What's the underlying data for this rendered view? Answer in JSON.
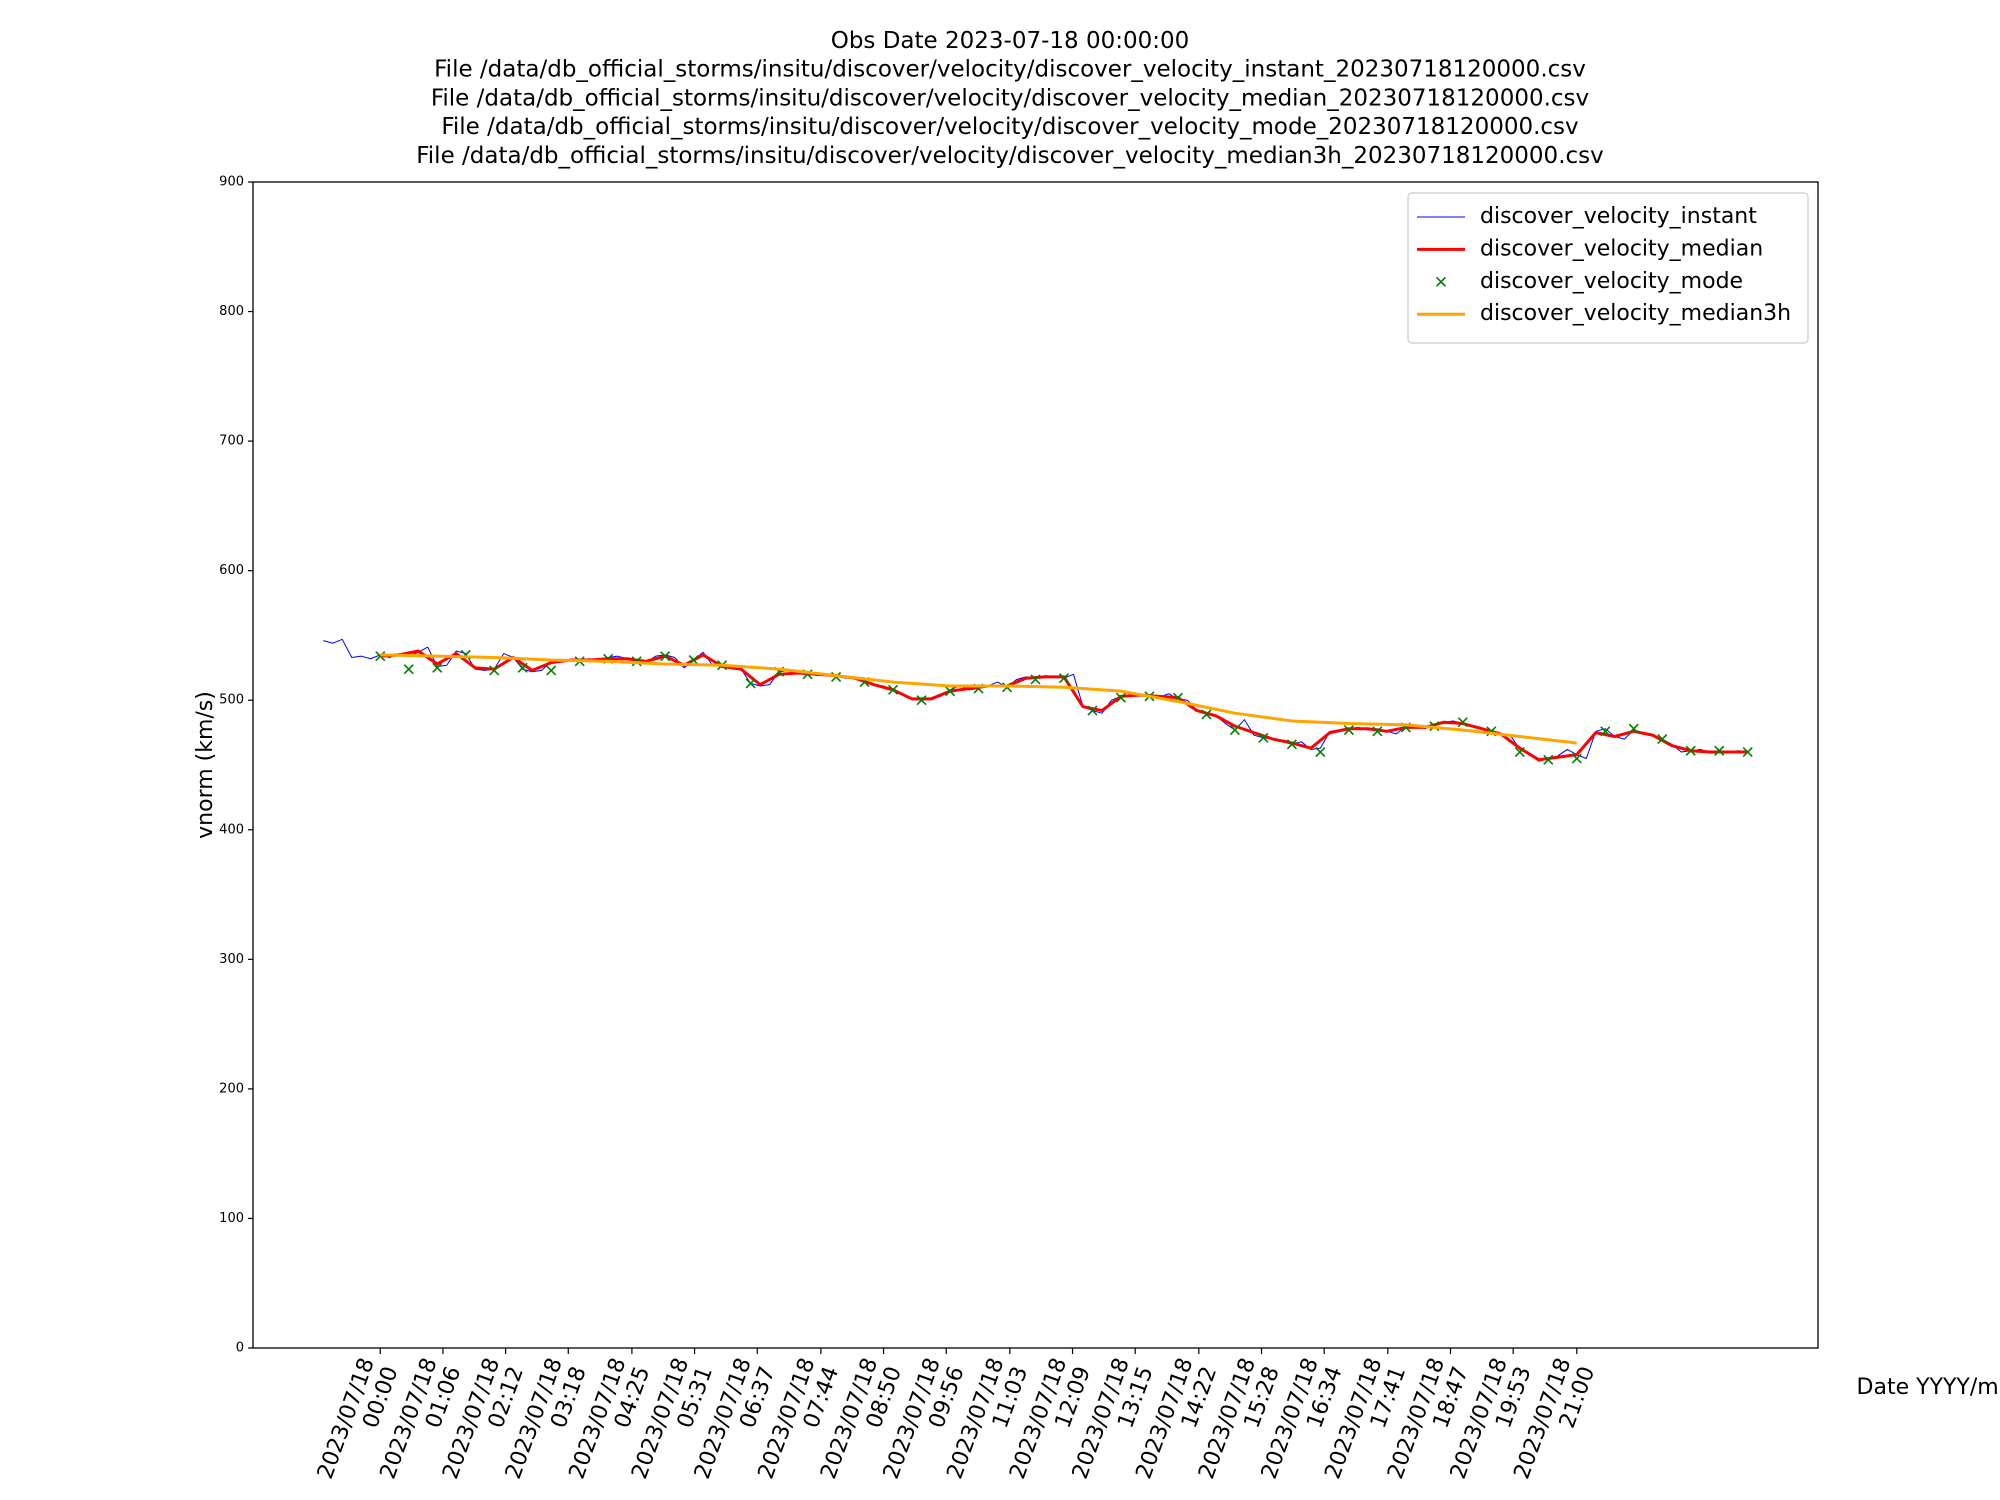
{
  "chart_data": {
    "type": "line",
    "title": [
      "Obs Date 2023-07-18 00:00:00",
      "File /data/db_official_storms/insitu/discover/velocity/discover_velocity_instant_20230718120000.csv",
      "File /data/db_official_storms/insitu/discover/velocity/discover_velocity_median_20230718120000.csv",
      "File /data/db_official_storms/insitu/discover/velocity/discover_velocity_mode_20230718120000.csv",
      "File /data/db_official_storms/insitu/discover/velocity/discover_velocity_median3h_20230718120000.csv"
    ],
    "x_label": "Date YYYY/mm/dd",
    "y_label": "vnorm (km/s)",
    "xlim": [
      -134,
      1514
    ],
    "ylim": [
      0,
      900
    ],
    "yticks": [
      0,
      100,
      200,
      300,
      400,
      500,
      600,
      700,
      800,
      900
    ],
    "xticks": [
      {
        "value": 0,
        "label": "2023/07/18\n00:00"
      },
      {
        "value": 66,
        "label": "2023/07/18\n01:06"
      },
      {
        "value": 132,
        "label": "2023/07/18\n02:12"
      },
      {
        "value": 198,
        "label": "2023/07/18\n03:18"
      },
      {
        "value": 265,
        "label": "2023/07/18\n04:25"
      },
      {
        "value": 331,
        "label": "2023/07/18\n05:31"
      },
      {
        "value": 397,
        "label": "2023/07/18\n06:37"
      },
      {
        "value": 464,
        "label": "2023/07/18\n07:44"
      },
      {
        "value": 530,
        "label": "2023/07/18\n08:50"
      },
      {
        "value": 596,
        "label": "2023/07/18\n09:56"
      },
      {
        "value": 663,
        "label": "2023/07/18\n11:03"
      },
      {
        "value": 729,
        "label": "2023/07/18\n12:09"
      },
      {
        "value": 795,
        "label": "2023/07/18\n13:15"
      },
      {
        "value": 862,
        "label": "2023/07/18\n14:22"
      },
      {
        "value": 928,
        "label": "2023/07/18\n15:28"
      },
      {
        "value": 994,
        "label": "2023/07/18\n16:34"
      },
      {
        "value": 1061,
        "label": "2023/07/18\n17:41"
      },
      {
        "value": 1127,
        "label": "2023/07/18\n18:47"
      },
      {
        "value": 1193,
        "label": "2023/07/18\n19:53"
      },
      {
        "value": 1260,
        "label": "2023/07/18\n21:00"
      }
    ],
    "legend": "upper right",
    "series": [
      {
        "name": "discover_velocity_instant",
        "color": "#0000ff",
        "style": "line",
        "width": 1,
        "x": [
          -60,
          -50,
          -40,
          -30,
          -20,
          -10,
          0,
          10,
          20,
          30,
          40,
          50,
          60,
          70,
          80,
          90,
          100,
          110,
          120,
          130,
          140,
          150,
          160,
          170,
          180,
          190,
          200,
          210,
          220,
          230,
          240,
          250,
          260,
          270,
          280,
          290,
          300,
          310,
          320,
          330,
          340,
          350,
          360,
          370,
          380,
          390,
          400,
          410,
          420,
          430,
          440,
          450,
          460,
          470,
          480,
          490,
          500,
          510,
          520,
          530,
          540,
          550,
          560,
          570,
          580,
          590,
          600,
          610,
          620,
          630,
          640,
          650,
          660,
          670,
          680,
          690,
          700,
          710,
          720,
          730,
          740,
          750,
          760,
          770,
          780,
          790,
          800,
          810,
          820,
          830,
          840,
          850,
          860,
          870,
          880,
          890,
          900,
          910,
          920,
          930,
          940,
          950,
          960,
          970,
          980,
          990,
          1000,
          1010,
          1020,
          1030,
          1040,
          1050,
          1060,
          1070,
          1080,
          1090,
          1100,
          1110,
          1120,
          1130,
          1140,
          1150,
          1160,
          1170,
          1180,
          1190,
          1200,
          1210,
          1220,
          1230,
          1240,
          1250,
          1260,
          1270,
          1280,
          1290,
          1300,
          1310,
          1320,
          1330,
          1340,
          1350,
          1360,
          1370,
          1380,
          1390,
          1400,
          1410,
          1420,
          1430,
          1440
        ],
        "values": [
          546,
          544,
          547,
          533,
          534,
          532,
          535,
          533,
          536,
          534,
          537,
          541,
          526,
          527,
          538,
          536,
          524,
          523,
          524,
          536,
          533,
          524,
          522,
          523,
          530,
          531,
          531,
          530,
          532,
          531,
          533,
          534,
          532,
          531,
          529,
          534,
          535,
          533,
          525,
          531,
          537,
          527,
          526,
          525,
          524,
          513,
          511,
          512,
          522,
          523,
          521,
          521,
          519,
          520,
          519,
          517,
          518,
          514,
          512,
          511,
          508,
          505,
          501,
          500,
          501,
          503,
          508,
          511,
          508,
          509,
          511,
          514,
          510,
          516,
          518,
          517,
          519,
          518,
          517,
          520,
          495,
          492,
          490,
          500,
          503,
          504,
          505,
          503,
          502,
          505,
          501,
          500,
          492,
          489,
          488,
          482,
          477,
          485,
          473,
          471,
          470,
          468,
          466,
          468,
          462,
          463,
          476,
          477,
          478,
          479,
          477,
          478,
          476,
          474,
          480,
          481,
          478,
          481,
          483,
          484,
          482,
          480,
          478,
          476,
          474,
          473,
          462,
          458,
          453,
          455,
          457,
          462,
          458,
          455,
          476,
          478,
          472,
          470,
          477,
          475,
          473,
          470,
          466,
          460,
          461,
          462,
          460,
          461,
          460,
          461,
          460
        ]
      },
      {
        "name": "discover_velocity_median",
        "color": "#ff0000",
        "style": "line",
        "width": 3,
        "x": [
          0,
          20,
          40,
          60,
          80,
          100,
          120,
          140,
          160,
          180,
          200,
          220,
          240,
          260,
          280,
          300,
          320,
          340,
          360,
          380,
          400,
          420,
          440,
          460,
          480,
          500,
          520,
          540,
          560,
          580,
          600,
          620,
          640,
          660,
          680,
          700,
          720,
          740,
          760,
          780,
          800,
          820,
          840,
          860,
          880,
          900,
          920,
          940,
          960,
          980,
          1000,
          1020,
          1040,
          1060,
          1080,
          1100,
          1120,
          1140,
          1160,
          1180,
          1200,
          1220,
          1240,
          1260,
          1280,
          1300,
          1320,
          1340,
          1360,
          1380,
          1400,
          1420,
          1440
        ],
        "values": [
          534,
          535,
          538,
          528,
          536,
          525,
          524,
          533,
          523,
          529,
          531,
          531,
          532,
          532,
          530,
          534,
          527,
          535,
          526,
          524,
          512,
          520,
          521,
          520,
          519,
          517,
          512,
          508,
          501,
          501,
          507,
          509,
          511,
          511,
          517,
          518,
          518,
          495,
          492,
          503,
          504,
          503,
          502,
          492,
          488,
          480,
          475,
          470,
          467,
          463,
          475,
          478,
          478,
          476,
          479,
          479,
          483,
          482,
          478,
          474,
          463,
          454,
          456,
          458,
          475,
          472,
          476,
          473,
          465,
          461,
          460,
          460,
          460
        ]
      },
      {
        "name": "discover_velocity_mode",
        "color": "#008000",
        "style": "x",
        "x": [
          0,
          30,
          60,
          90,
          120,
          150,
          180,
          210,
          240,
          270,
          300,
          330,
          360,
          390,
          420,
          450,
          480,
          510,
          540,
          570,
          600,
          630,
          660,
          690,
          720,
          750,
          780,
          810,
          840,
          870,
          900,
          930,
          960,
          990,
          1020,
          1050,
          1080,
          1110,
          1140,
          1170,
          1200,
          1230,
          1260,
          1290,
          1320,
          1350,
          1380,
          1410,
          1440
        ],
        "values": [
          534,
          524,
          525,
          535,
          523,
          525,
          523,
          530,
          532,
          530,
          534,
          531,
          527,
          513,
          522,
          520,
          518,
          514,
          508,
          500,
          507,
          509,
          510,
          516,
          517,
          492,
          502,
          503,
          502,
          489,
          477,
          471,
          466,
          460,
          477,
          476,
          479,
          480,
          483,
          476,
          460,
          454,
          455,
          476,
          478,
          470,
          461,
          461,
          460
        ]
      },
      {
        "name": "discover_velocity_median3h",
        "color": "#ffa500",
        "style": "line",
        "width": 3,
        "x": [
          0,
          60,
          120,
          180,
          240,
          300,
          360,
          420,
          480,
          540,
          600,
          660,
          720,
          780,
          840,
          900,
          960,
          1020,
          1080,
          1140,
          1200,
          1260
        ],
        "values": [
          535,
          534,
          533,
          531,
          530,
          528,
          527,
          524,
          519,
          514,
          511,
          511,
          510,
          507,
          499,
          490,
          484,
          482,
          481,
          477,
          472,
          467
        ]
      }
    ]
  }
}
